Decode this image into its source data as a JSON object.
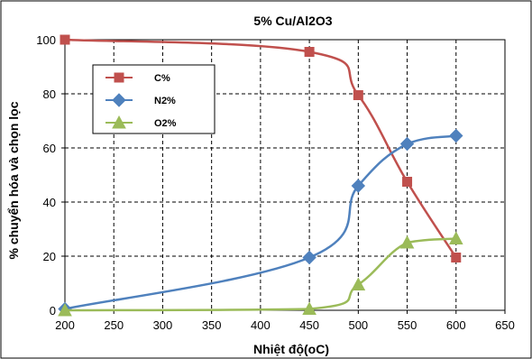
{
  "chart_data": {
    "type": "line",
    "title": "5% Cu/Al2O3",
    "xlabel": "Nhiệt độ(oC)",
    "ylabel": "% chuyển hóa và chọn lọc",
    "xlim": [
      200,
      650
    ],
    "ylim": [
      0,
      100
    ],
    "xticks": [
      "200",
      "250",
      "300",
      "350",
      "400",
      "450",
      "500",
      "550",
      "600",
      "650"
    ],
    "yticks": [
      "0",
      "20",
      "40",
      "60",
      "80",
      "100"
    ],
    "grid": true,
    "legend_position": "upper-left",
    "series": [
      {
        "name": "C%",
        "color": "#c0504d",
        "marker": "square",
        "x": [
          200,
          450,
          500,
          550,
          600
        ],
        "y": [
          100,
          95.5,
          79.5,
          47.5,
          19.5
        ]
      },
      {
        "name": "N2%",
        "color": "#4f81bd",
        "marker": "diamond",
        "x": [
          200,
          450,
          500,
          550,
          600
        ],
        "y": [
          0.5,
          19.5,
          46,
          61.5,
          64.5
        ]
      },
      {
        "name": "O2%",
        "color": "#9bbb59",
        "marker": "triangle",
        "x": [
          200,
          450,
          500,
          550,
          600
        ],
        "y": [
          0,
          0.5,
          9.5,
          25,
          26.5
        ]
      }
    ]
  }
}
